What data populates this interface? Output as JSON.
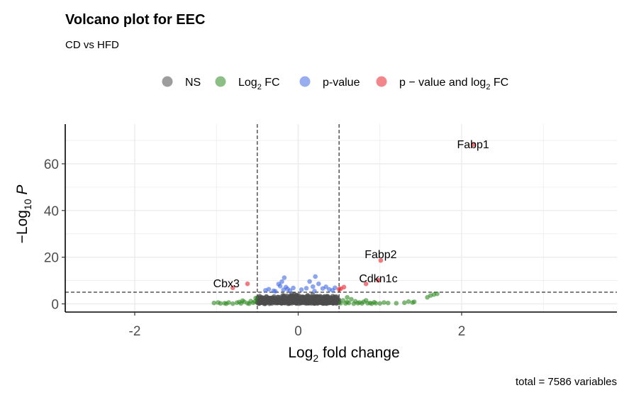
{
  "chart_data": {
    "type": "scatter",
    "title": "Volcano plot for EEC",
    "subtitle": "CD vs HFD",
    "xlabel": {
      "main": "Log",
      "sub": "2",
      "rest": " fold change"
    },
    "ylabel": {
      "pre": "−Log",
      "sub": "10",
      "post": " P"
    },
    "caption": "total = 7586 variables",
    "xlim": [
      -2.85,
      3.9
    ],
    "ylim": [
      -3.5,
      77
    ],
    "x_ticks": [
      -2,
      0,
      2
    ],
    "x_tick_labels": [
      "-2",
      "0",
      "2"
    ],
    "y_ticks": [
      0,
      20,
      40,
      60
    ],
    "y_tick_labels": [
      "0",
      "20",
      "40",
      "60"
    ],
    "grid": true,
    "legend_position": "top",
    "fc_cutoff": 0.5,
    "p_cutoff_y": 5,
    "colors": {
      "NS": "#4d4d4d",
      "FC": "#2e8b22",
      "P": "#4169e1",
      "FCP": "#e8232b"
    },
    "legend": [
      {
        "key": "NS",
        "label": "NS"
      },
      {
        "key": "FC",
        "label": "Log",
        "sub": "2",
        "post": " FC"
      },
      {
        "key": "P",
        "label": "p-value"
      },
      {
        "key": "FCP",
        "label": "p − value and log",
        "sub": "2",
        "post": " FC"
      }
    ],
    "series": [
      {
        "name": "NS",
        "color": "#4d4d4d",
        "points": []
      },
      {
        "name": "Log2 FC",
        "color": "#2e8b22",
        "points": [
          [
            -1.03,
            0.4
          ],
          [
            -0.95,
            0.2
          ],
          [
            -0.9,
            0.3
          ],
          [
            -0.85,
            0.6
          ],
          [
            -0.8,
            0.1
          ],
          [
            -0.75,
            0.5
          ],
          [
            -0.7,
            0.2
          ],
          [
            -0.66,
            0.9
          ],
          [
            -0.62,
            0.3
          ],
          [
            -0.58,
            1.2
          ],
          [
            -0.55,
            0.5
          ],
          [
            -0.52,
            2.5
          ],
          [
            -0.53,
            1.0
          ],
          [
            -0.6,
            0.1
          ],
          [
            -0.72,
            0.8
          ],
          [
            -0.88,
            0.1
          ],
          [
            -0.98,
            0.6
          ],
          [
            -0.68,
            1.4
          ],
          [
            0.52,
            0.3
          ],
          [
            0.55,
            1.5
          ],
          [
            0.58,
            0.2
          ],
          [
            0.6,
            0.8
          ],
          [
            0.62,
            0.4
          ],
          [
            0.65,
            2.0
          ],
          [
            0.68,
            0.1
          ],
          [
            0.7,
            1.1
          ],
          [
            0.73,
            0.3
          ],
          [
            0.75,
            0.6
          ],
          [
            0.78,
            0.2
          ],
          [
            0.8,
            0.9
          ],
          [
            0.83,
            1.5
          ],
          [
            0.85,
            0.3
          ],
          [
            0.88,
            0.4
          ],
          [
            0.9,
            0.1
          ],
          [
            0.93,
            0.7
          ],
          [
            0.95,
            0.3
          ],
          [
            1.0,
            0.2
          ],
          [
            1.05,
            0.6
          ],
          [
            1.1,
            0.4
          ],
          [
            1.2,
            0.3
          ],
          [
            1.3,
            0.5
          ],
          [
            1.35,
            1.0
          ],
          [
            1.4,
            0.6
          ],
          [
            1.42,
            0.9
          ],
          [
            1.58,
            2.8
          ],
          [
            1.62,
            3.6
          ],
          [
            1.66,
            4.0
          ],
          [
            1.7,
            4.3
          ],
          [
            0.6,
            2.8
          ]
        ]
      },
      {
        "name": "p-value",
        "color": "#4169e1",
        "points": [
          [
            -0.4,
            5.8
          ],
          [
            -0.36,
            6.3
          ],
          [
            -0.3,
            5.6
          ],
          [
            -0.24,
            8.5
          ],
          [
            -0.22,
            7.6
          ],
          [
            -0.2,
            9.5
          ],
          [
            -0.17,
            11.2
          ],
          [
            -0.15,
            7.2
          ],
          [
            -0.13,
            6.4
          ],
          [
            -0.18,
            6.0
          ],
          [
            -0.1,
            5.7
          ],
          [
            -0.06,
            6.8
          ],
          [
            0.04,
            6.1
          ],
          [
            0.1,
            6.7
          ],
          [
            0.14,
            9.6
          ],
          [
            0.18,
            7.4
          ],
          [
            0.21,
            11.7
          ],
          [
            0.25,
            8.6
          ],
          [
            0.3,
            6.6
          ],
          [
            0.34,
            7.3
          ],
          [
            0.38,
            6.2
          ],
          [
            0.42,
            5.8
          ],
          [
            0.45,
            6.9
          ],
          [
            -0.28,
            5.4
          ],
          [
            0.2,
            5.5
          ]
        ]
      },
      {
        "name": "p − value and log2 FC",
        "color": "#e8232b",
        "points": [
          [
            2.14,
            68.2
          ],
          [
            1.01,
            18.6
          ],
          [
            0.98,
            10.1
          ],
          [
            0.83,
            8.6
          ],
          [
            -0.8,
            6.9
          ],
          [
            -0.62,
            8.6
          ],
          [
            0.52,
            6.5
          ],
          [
            0.56,
            7.2
          ],
          [
            0.5,
            6.3
          ]
        ]
      }
    ],
    "point_labels": [
      {
        "text": "Fabp1",
        "x": 2.14,
        "y": 68.2
      },
      {
        "text": "Fabp2",
        "x": 1.01,
        "y": 18.6
      },
      {
        "text": "Cdkn1c",
        "x": 0.98,
        "y": 10.1
      },
      {
        "text": "Cbx3",
        "x": -0.8,
        "y": 6.9
      }
    ]
  }
}
